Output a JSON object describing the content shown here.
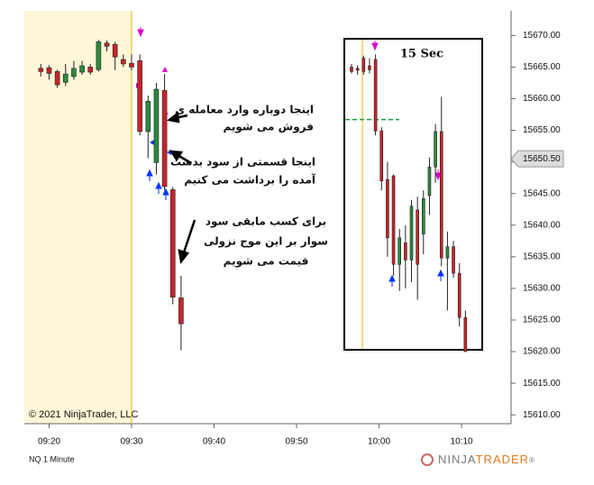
{
  "chart_data": [
    {
      "type": "candlestick",
      "label": "NQ 1 Minute",
      "copyright": "© 2021 NinjaTrader, LLC",
      "x": [
        "09:19",
        "09:20",
        "09:21",
        "09:22",
        "09:23",
        "09:24",
        "09:25",
        "09:26",
        "09:27",
        "09:28",
        "09:29",
        "09:30",
        "09:31",
        "09:32",
        "09:33",
        "09:34",
        "09:35",
        "09:36"
      ],
      "open": [
        15664.8,
        15664.9,
        15664.3,
        15662.6,
        15663.5,
        15664.2,
        15665.0,
        15664.6,
        15668.8,
        15668.6,
        15666.2,
        15665.6,
        15666.0,
        15654.8,
        15649.9,
        15661.3,
        15645.6,
        15628.5
      ],
      "high": [
        15665.5,
        15665.3,
        15664.6,
        15665.5,
        15666.0,
        15666.0,
        15665.5,
        15669.3,
        15669.2,
        15669.0,
        15667.0,
        15667.0,
        15667.0,
        15660.5,
        15662.5,
        15663.9,
        15646.0,
        15632.0
      ],
      "low": [
        15663.5,
        15663.0,
        15661.7,
        15662.0,
        15663.0,
        15663.8,
        15663.8,
        15664.3,
        15667.5,
        15664.5,
        15665.0,
        15664.5,
        15654.2,
        15650.6,
        15648.0,
        15645.5,
        15627.5,
        15620.2
      ],
      "close": [
        15664.3,
        15664.0,
        15662.2,
        15663.9,
        15664.8,
        15665.2,
        15664.2,
        15669.0,
        15668.3,
        15666.6,
        15665.5,
        15665.0,
        15654.8,
        15659.6,
        15661.5,
        15646.1,
        15628.6,
        15624.4
      ],
      "up_color": "#2a8a3e",
      "down_color": "#c8242a",
      "xlim": [
        "09:17",
        "10:16"
      ],
      "xticks": [
        "09:20",
        "09:30",
        "09:40",
        "09:50",
        "10:00",
        "10:10"
      ],
      "ylim": [
        15608.6,
        15673.9
      ],
      "yticks": [
        {
          "value": 15610,
          "label": "15610.00"
        },
        {
          "value": 15615,
          "label": "15615.00"
        },
        {
          "value": 15620,
          "label": "15620.00"
        },
        {
          "value": 15625,
          "label": "15625.00"
        },
        {
          "value": 15630,
          "label": "15630.00"
        },
        {
          "value": 15635,
          "label": "15635.00"
        },
        {
          "value": 15640,
          "label": "15640.00"
        },
        {
          "value": 15645,
          "label": "15645.00"
        },
        {
          "value": 15650,
          "label": "15650.00"
        },
        {
          "value": 15655,
          "label": "15655.00"
        },
        {
          "value": 15660,
          "label": "15660.00"
        },
        {
          "value": 15665,
          "label": "15665.00"
        },
        {
          "value": 15670,
          "label": "15670.00"
        }
      ],
      "last_price": {
        "value": 15650.5,
        "label": "15650.50"
      },
      "session_start": "09:30",
      "annotations": [
        [
          "اینجا دوباره وارد معامله ی",
          "فروش می شویم"
        ],
        [
          "اینجا قسمتی از سود بدست",
          "آمده را برداشت می کنیم"
        ],
        [
          "برای کسب مابقی سود",
          "سوار بر این موج نزولی",
          "قیمت می شویم"
        ]
      ]
    },
    {
      "type": "candlestick",
      "title": "15 Sec",
      "open": [
        15665.0,
        15664.8,
        15666.4,
        15665.2,
        15666.2,
        15654.9,
        15647.2,
        15647.8,
        15633.8,
        15637.2,
        15634.5,
        15642.4,
        15638.6,
        15644.7,
        15649.2,
        15654.8,
        15634.8,
        15636.6,
        15632.4,
        15625.4
      ],
      "high": [
        15665.5,
        15665.3,
        15666.8,
        15666.4,
        15667.0,
        15655.5,
        15650.0,
        15648.0,
        15639.4,
        15640.0,
        15644.0,
        15644.5,
        15645.5,
        15650.7,
        15656.0,
        15660.3,
        15639.0,
        15637.5,
        15634.0,
        15626.5
      ],
      "low": [
        15664.0,
        15663.8,
        15663.8,
        15664.0,
        15654.2,
        15645.5,
        15635.0,
        15632.0,
        15629.6,
        15630.0,
        15631.0,
        15628.2,
        15635.4,
        15641.6,
        15646.7,
        15633.5,
        15626.5,
        15631.7,
        15624.0,
        15620.0
      ],
      "close": [
        15664.3,
        15664.5,
        15664.3,
        15664.6,
        15654.9,
        15647.0,
        15638.0,
        15633.8,
        15638.0,
        15634.5,
        15643.0,
        15633.8,
        15644.2,
        15649.2,
        15654.8,
        15634.8,
        15636.6,
        15632.4,
        15625.4,
        15620.0
      ],
      "level": {
        "value": 15656.7,
        "color": "#1a9e3a"
      }
    }
  ],
  "logo": [
    "NINJA",
    "TRADER",
    "®"
  ]
}
